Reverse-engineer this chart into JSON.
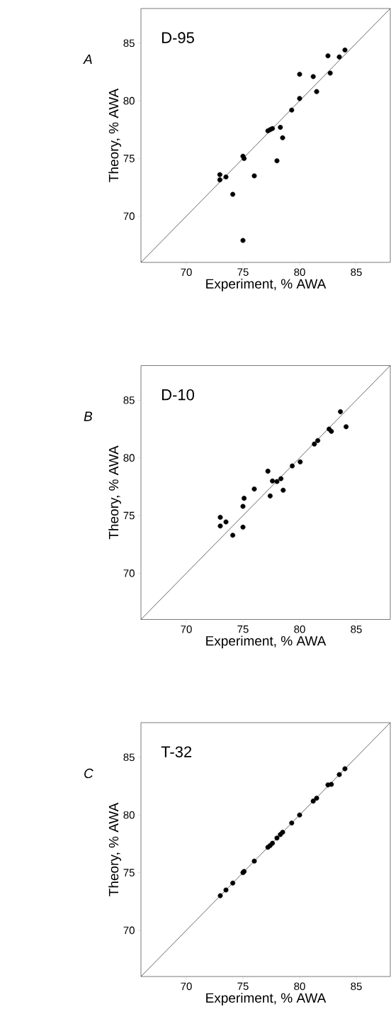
{
  "chart_data": [
    {
      "type": "scatter",
      "title": "A",
      "subtitle": "D-95",
      "xlabel": "Experiment, % AWA",
      "ylabel": "Theory, % AWA",
      "xlim": [
        66,
        88
      ],
      "ylim": [
        66,
        88
      ],
      "xticks": [
        70,
        75,
        80,
        85
      ],
      "yticks": [
        70,
        75,
        80,
        85
      ],
      "series": [
        {
          "type": "scatter",
          "marker": "circle",
          "color": "#000000",
          "x": [
            72.96,
            72.96,
            73.5,
            74.1,
            75.0,
            75.1,
            75.0,
            76.0,
            77.2,
            77.4,
            77.6,
            78.3,
            78.5,
            78.0,
            79.3,
            80.0,
            80.0,
            81.2,
            81.5,
            82.5,
            82.7,
            83.5,
            84.0
          ],
          "values": [
            73.6,
            73.15,
            73.4,
            71.9,
            75.2,
            75.0,
            67.9,
            73.5,
            77.4,
            77.5,
            77.6,
            77.7,
            76.8,
            74.8,
            79.2,
            80.2,
            82.3,
            82.1,
            80.8,
            83.9,
            82.4,
            83.8,
            84.4
          ]
        },
        {
          "type": "line",
          "marker": "none",
          "line_style": "solid",
          "color": "#000000",
          "x": [
            66,
            88
          ],
          "values": [
            66,
            88
          ]
        }
      ]
    },
    {
      "type": "scatter",
      "title": "B",
      "subtitle": "D-10",
      "xlabel": "Experiment, % AWA",
      "ylabel": "Theory, % AWA",
      "xlim": [
        66,
        88
      ],
      "ylim": [
        66,
        88
      ],
      "xticks": [
        70,
        75,
        80,
        85
      ],
      "yticks": [
        70,
        75,
        80,
        85
      ],
      "series": [
        {
          "type": "scatter",
          "marker": "circle",
          "color": "#000000",
          "x": [
            73.0,
            73.0,
            73.5,
            74.1,
            75.0,
            75.0,
            75.1,
            76.0,
            77.2,
            77.4,
            77.6,
            78.0,
            78.35,
            78.55,
            79.35,
            80.05,
            81.3,
            81.6,
            82.6,
            82.8,
            83.6,
            84.1
          ],
          "values": [
            74.85,
            74.1,
            74.45,
            73.3,
            74.0,
            75.8,
            76.5,
            77.3,
            78.85,
            76.7,
            78.0,
            77.95,
            78.2,
            77.2,
            79.3,
            79.65,
            81.2,
            81.5,
            82.5,
            82.3,
            84.0,
            82.7
          ]
        },
        {
          "type": "line",
          "marker": "none",
          "line_style": "solid",
          "color": "#000000",
          "x": [
            66,
            88
          ],
          "values": [
            66,
            88
          ]
        }
      ]
    },
    {
      "type": "scatter",
      "title": "C",
      "subtitle": "T-32",
      "xlabel": "Experiment, % AWA",
      "ylabel": "Theory, % AWA",
      "xlim": [
        66,
        88
      ],
      "ylim": [
        66,
        88
      ],
      "xticks": [
        70,
        75,
        80,
        85
      ],
      "yticks": [
        70,
        75,
        80,
        85
      ],
      "series": [
        {
          "type": "scatter",
          "marker": "circle",
          "color": "#000000",
          "x": [
            73.0,
            73.5,
            74.1,
            75.0,
            75.1,
            76.0,
            77.2,
            77.4,
            77.6,
            78.0,
            78.3,
            78.5,
            79.3,
            80.0,
            81.2,
            81.5,
            82.5,
            82.8,
            83.5,
            84.0
          ],
          "values": [
            73.0,
            73.5,
            74.1,
            75.0,
            75.1,
            76.0,
            77.2,
            77.35,
            77.55,
            78.0,
            78.3,
            78.5,
            79.3,
            80.0,
            81.2,
            81.45,
            82.6,
            82.65,
            83.5,
            84.0
          ]
        },
        {
          "type": "line",
          "marker": "none",
          "line_style": "solid",
          "color": "#000000",
          "x": [
            66,
            88
          ],
          "values": [
            66,
            88
          ]
        }
      ]
    }
  ]
}
